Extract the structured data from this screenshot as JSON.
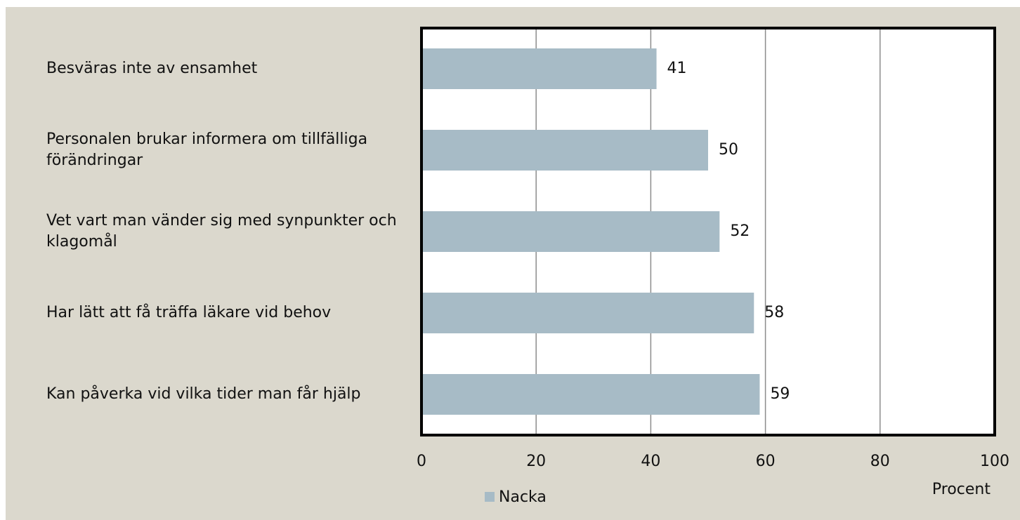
{
  "chart_data": {
    "type": "barh",
    "categories": [
      "Besväras inte av ensamhet",
      "Personalen brukar informera om tillfälliga förändringar",
      "Vet vart man vänder sig med synpunkter och klagomål",
      "Har lätt att få träffa läkare vid behov",
      "Kan påverka vid vilka tider man får hjälp"
    ],
    "series": [
      {
        "name": "Nacka",
        "color": "#a7bbc6",
        "values": [
          41,
          50,
          52,
          58,
          59
        ]
      }
    ],
    "xlim": [
      0,
      100
    ],
    "xticks": [
      0,
      20,
      40,
      60,
      80,
      100
    ],
    "grid": true,
    "xlabel": "Procent",
    "legend": "bottom"
  }
}
